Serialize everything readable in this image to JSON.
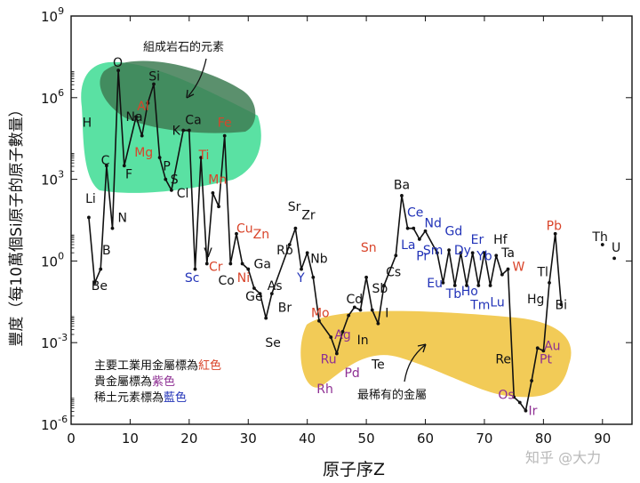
{
  "chart_data": {
    "type": "line",
    "title": "",
    "xlabel": "原子序Z",
    "ylabel": "豐度（每10萬個Si原子的原子數量）",
    "xlim": [
      0,
      95
    ],
    "ylim_log10": [
      -6,
      9
    ],
    "x_ticks": [
      0,
      10,
      20,
      30,
      40,
      50,
      60,
      70,
      80,
      90
    ],
    "y_ticks": [
      {
        "exp": -6,
        "label": "10",
        "sup": "-6"
      },
      {
        "exp": -3,
        "label": "10",
        "sup": "-3"
      },
      {
        "exp": 0,
        "label": "10",
        "sup": "0"
      },
      {
        "exp": 3,
        "label": "10",
        "sup": "3"
      },
      {
        "exp": 6,
        "label": "10",
        "sup": "6"
      },
      {
        "exp": 9,
        "label": "10",
        "sup": "9"
      }
    ],
    "series": [
      {
        "name": "abundance",
        "points": [
          {
            "z": 3,
            "log": 1.6
          },
          {
            "z": 4,
            "log": -0.8
          },
          {
            "z": 5,
            "log": -0.3
          },
          {
            "z": 6,
            "log": 3.5
          },
          {
            "z": 7,
            "log": 1.2
          },
          {
            "z": 8,
            "log": 7.0
          },
          {
            "z": 9,
            "log": 3.5
          },
          {
            "z": 11,
            "log": 5.3
          },
          {
            "z": 12,
            "log": 4.6
          },
          {
            "z": 13,
            "log": 5.8
          },
          {
            "z": 14,
            "log": 6.5
          },
          {
            "z": 15,
            "log": 3.8
          },
          {
            "z": 16,
            "log": 3.0
          },
          {
            "z": 17,
            "log": 2.6
          },
          {
            "z": 19,
            "log": 4.8
          },
          {
            "z": 20,
            "log": 4.8
          },
          {
            "z": 21,
            "log": -0.3
          },
          {
            "z": 22,
            "log": 3.8
          },
          {
            "z": 23,
            "log": -0.1
          },
          {
            "z": 24,
            "log": 2.5
          },
          {
            "z": 25,
            "log": 2.0
          },
          {
            "z": 26,
            "log": 4.6
          },
          {
            "z": 27,
            "log": -0.1
          },
          {
            "z": 28,
            "log": 1.0
          },
          {
            "z": 29,
            "log": -0.1
          },
          {
            "z": 30,
            "log": -0.3
          },
          {
            "z": 31,
            "log": -1.0
          },
          {
            "z": 32,
            "log": -1.2
          },
          {
            "z": 33,
            "log": -2.1
          },
          {
            "z": 34,
            "log": -1.2
          },
          {
            "z": 37,
            "log": 0.6
          },
          {
            "z": 38,
            "log": 1.2
          },
          {
            "z": 39,
            "log": -0.3
          },
          {
            "z": 40,
            "log": 0.3
          },
          {
            "z": 41,
            "log": -0.6
          },
          {
            "z": 42,
            "log": -2.2
          },
          {
            "z": 44,
            "log": -2.8
          },
          {
            "z": 45,
            "log": -3.4
          },
          {
            "z": 46,
            "log": -2.6
          },
          {
            "z": 47,
            "log": -2.0
          },
          {
            "z": 48,
            "log": -1.7
          },
          {
            "z": 49,
            "log": -1.8
          },
          {
            "z": 50,
            "log": -0.6
          },
          {
            "z": 51,
            "log": -1.8
          },
          {
            "z": 52,
            "log": -2.3
          },
          {
            "z": 53,
            "log": -0.9
          },
          {
            "z": 55,
            "log": 0.2
          },
          {
            "z": 56,
            "log": 2.4
          },
          {
            "z": 57,
            "log": 1.2
          },
          {
            "z": 58,
            "log": 1.2
          },
          {
            "z": 59,
            "log": 0.8
          },
          {
            "z": 60,
            "log": 1.1
          },
          {
            "z": 62,
            "log": 0.3
          },
          {
            "z": 63,
            "log": -0.8
          },
          {
            "z": 64,
            "log": 0.4
          },
          {
            "z": 65,
            "log": -0.9
          },
          {
            "z": 66,
            "log": 0.3
          },
          {
            "z": 67,
            "log": -0.9
          },
          {
            "z": 68,
            "log": 0.3
          },
          {
            "z": 69,
            "log": -0.9
          },
          {
            "z": 70,
            "log": 0.3
          },
          {
            "z": 71,
            "log": -0.9
          },
          {
            "z": 72,
            "log": 0.2
          },
          {
            "z": 73,
            "log": -0.5
          },
          {
            "z": 74,
            "log": -0.3
          },
          {
            "z": 75,
            "log": -5.0
          },
          {
            "z": 76,
            "log": -5.2
          },
          {
            "z": 77,
            "log": -5.5
          },
          {
            "z": 78,
            "log": -4.4
          },
          {
            "z": 79,
            "log": -3.2
          },
          {
            "z": 80,
            "log": -3.3
          },
          {
            "z": 81,
            "log": -0.8
          },
          {
            "z": 82,
            "log": 1.0
          },
          {
            "z": 83,
            "log": -1.6
          }
        ]
      },
      {
        "name": "isolated",
        "points": [
          {
            "z": 90,
            "log": 0.6
          },
          {
            "z": 92,
            "log": 0.1
          }
        ]
      }
    ],
    "labels": [
      {
        "sym": "H",
        "z": 2.7,
        "log": 5.1,
        "cat": "black"
      },
      {
        "sym": "Li",
        "z": 3.3,
        "log": 2.3,
        "cat": "black"
      },
      {
        "sym": "Be",
        "z": 4.8,
        "log": -0.9,
        "cat": "black"
      },
      {
        "sym": "B",
        "z": 6.0,
        "log": 0.4,
        "cat": "black"
      },
      {
        "sym": "C",
        "z": 5.8,
        "log": 3.7,
        "cat": "black"
      },
      {
        "sym": "N",
        "z": 8.7,
        "log": 1.6,
        "cat": "black"
      },
      {
        "sym": "O",
        "z": 7.9,
        "log": 7.3,
        "cat": "black"
      },
      {
        "sym": "F",
        "z": 9.8,
        "log": 3.2,
        "cat": "black"
      },
      {
        "sym": "Na",
        "z": 10.7,
        "log": 5.3,
        "cat": "black"
      },
      {
        "sym": "Mg",
        "z": 12.3,
        "log": 4.0,
        "cat": "industrial"
      },
      {
        "sym": "Al",
        "z": 12.2,
        "log": 5.7,
        "cat": "industrial"
      },
      {
        "sym": "Si",
        "z": 14.1,
        "log": 6.8,
        "cat": "black"
      },
      {
        "sym": "P",
        "z": 16.2,
        "log": 3.5,
        "cat": "black"
      },
      {
        "sym": "S",
        "z": 17.5,
        "log": 3.0,
        "cat": "black"
      },
      {
        "sym": "Cl",
        "z": 18.9,
        "log": 2.5,
        "cat": "black"
      },
      {
        "sym": "K",
        "z": 17.8,
        "log": 4.8,
        "cat": "black"
      },
      {
        "sym": "Ca",
        "z": 20.7,
        "log": 5.2,
        "cat": "black"
      },
      {
        "sym": "Sc",
        "z": 20.5,
        "log": -0.6,
        "cat": "rare"
      },
      {
        "sym": "Ti",
        "z": 22.5,
        "log": 3.9,
        "cat": "industrial"
      },
      {
        "sym": "V",
        "z": 23.2,
        "log": 0.3,
        "cat": "black"
      },
      {
        "sym": "Cr",
        "z": 24.5,
        "log": -0.2,
        "cat": "industrial"
      },
      {
        "sym": "Mn",
        "z": 24.8,
        "log": 3.0,
        "cat": "industrial"
      },
      {
        "sym": "Fe",
        "z": 26.0,
        "log": 5.1,
        "cat": "industrial"
      },
      {
        "sym": "Co",
        "z": 26.3,
        "log": -0.7,
        "cat": "black"
      },
      {
        "sym": "Ni",
        "z": 29.2,
        "log": -0.6,
        "cat": "industrial"
      },
      {
        "sym": "Cu",
        "z": 29.4,
        "log": 1.2,
        "cat": "industrial"
      },
      {
        "sym": "Zn",
        "z": 32.2,
        "log": 1.0,
        "cat": "industrial"
      },
      {
        "sym": "Ga",
        "z": 32.4,
        "log": -0.1,
        "cat": "black"
      },
      {
        "sym": "Ge",
        "z": 31.0,
        "log": -1.3,
        "cat": "black"
      },
      {
        "sym": "As",
        "z": 34.5,
        "log": -0.9,
        "cat": "black"
      },
      {
        "sym": "Se",
        "z": 34.2,
        "log": -3.0,
        "cat": "black"
      },
      {
        "sym": "Br",
        "z": 36.2,
        "log": -1.7,
        "cat": "black"
      },
      {
        "sym": "Rb",
        "z": 36.2,
        "log": 0.4,
        "cat": "black"
      },
      {
        "sym": "Sr",
        "z": 37.8,
        "log": 2.0,
        "cat": "black"
      },
      {
        "sym": "Y",
        "z": 38.9,
        "log": -0.6,
        "cat": "rare"
      },
      {
        "sym": "Zr",
        "z": 40.2,
        "log": 1.7,
        "cat": "black"
      },
      {
        "sym": "Nb",
        "z": 42.0,
        "log": 0.1,
        "cat": "black"
      },
      {
        "sym": "Mo",
        "z": 42.2,
        "log": -1.9,
        "cat": "industrial"
      },
      {
        "sym": "Cd",
        "z": 48.0,
        "log": -1.4,
        "cat": "black"
      },
      {
        "sym": "Ag",
        "z": 46.0,
        "log": -2.7,
        "cat": "precious"
      },
      {
        "sym": "In",
        "z": 49.4,
        "log": -2.9,
        "cat": "black"
      },
      {
        "sym": "Sn",
        "z": 50.4,
        "log": 0.5,
        "cat": "industrial"
      },
      {
        "sym": "Sb",
        "z": 52.3,
        "log": -1.0,
        "cat": "black"
      },
      {
        "sym": "I",
        "z": 53.5,
        "log": -1.9,
        "cat": "black"
      },
      {
        "sym": "Te",
        "z": 52.0,
        "log": -3.8,
        "cat": "black"
      },
      {
        "sym": "Ru",
        "z": 43.6,
        "log": -3.6,
        "cat": "precious"
      },
      {
        "sym": "Rh",
        "z": 43.0,
        "log": -4.7,
        "cat": "precious"
      },
      {
        "sym": "Pd",
        "z": 47.6,
        "log": -4.1,
        "cat": "precious"
      },
      {
        "sym": "Cs",
        "z": 54.6,
        "log": -0.4,
        "cat": "black"
      },
      {
        "sym": "Ba",
        "z": 56.0,
        "log": 2.8,
        "cat": "black"
      },
      {
        "sym": "La",
        "z": 57.1,
        "log": 0.6,
        "cat": "rare"
      },
      {
        "sym": "Ce",
        "z": 58.3,
        "log": 1.8,
        "cat": "rare"
      },
      {
        "sym": "Pr",
        "z": 59.5,
        "log": 0.2,
        "cat": "rare"
      },
      {
        "sym": "Nd",
        "z": 61.3,
        "log": 1.4,
        "cat": "rare"
      },
      {
        "sym": "Sm",
        "z": 61.3,
        "log": 0.4,
        "cat": "rare"
      },
      {
        "sym": "Eu",
        "z": 61.6,
        "log": -0.8,
        "cat": "rare"
      },
      {
        "sym": "Gd",
        "z": 64.8,
        "log": 1.1,
        "cat": "rare"
      },
      {
        "sym": "Tb",
        "z": 64.8,
        "log": -1.2,
        "cat": "rare"
      },
      {
        "sym": "Dy",
        "z": 66.3,
        "log": 0.4,
        "cat": "rare"
      },
      {
        "sym": "Ho",
        "z": 67.5,
        "log": -1.1,
        "cat": "rare"
      },
      {
        "sym": "Er",
        "z": 68.8,
        "log": 0.8,
        "cat": "rare"
      },
      {
        "sym": "Yb",
        "z": 70.0,
        "log": 0.2,
        "cat": "rare"
      },
      {
        "sym": "Tm",
        "z": 69.3,
        "log": -1.6,
        "cat": "rare"
      },
      {
        "sym": "Lu",
        "z": 72.2,
        "log": -1.5,
        "cat": "rare"
      },
      {
        "sym": "Hf",
        "z": 72.7,
        "log": 0.8,
        "cat": "black"
      },
      {
        "sym": "Ta",
        "z": 74.0,
        "log": 0.3,
        "cat": "black"
      },
      {
        "sym": "W",
        "z": 75.8,
        "log": -0.2,
        "cat": "industrial"
      },
      {
        "sym": "Re",
        "z": 73.2,
        "log": -3.6,
        "cat": "black"
      },
      {
        "sym": "Os",
        "z": 73.7,
        "log": -4.9,
        "cat": "precious"
      },
      {
        "sym": "Ir",
        "z": 78.2,
        "log": -5.5,
        "cat": "precious"
      },
      {
        "sym": "Pt",
        "z": 80.4,
        "log": -3.6,
        "cat": "precious"
      },
      {
        "sym": "Au",
        "z": 81.5,
        "log": -3.1,
        "cat": "precious"
      },
      {
        "sym": "Hg",
        "z": 78.7,
        "log": -1.4,
        "cat": "black"
      },
      {
        "sym": "Tl",
        "z": 79.9,
        "log": -0.4,
        "cat": "black"
      },
      {
        "sym": "Pb",
        "z": 81.8,
        "log": 1.3,
        "cat": "industrial"
      },
      {
        "sym": "Bi",
        "z": 83.0,
        "log": -1.6,
        "cat": "black"
      },
      {
        "sym": "Th",
        "z": 89.6,
        "log": 0.9,
        "cat": "black"
      },
      {
        "sym": "U",
        "z": 92.3,
        "log": 0.5,
        "cat": "black"
      }
    ],
    "annotations": {
      "rock": "組成岩石的元素",
      "rarest": "最稀有的金屬"
    },
    "legend": [
      {
        "prefix": "主要工業用金屬標為",
        "word": "紅色",
        "cat": "industrial"
      },
      {
        "prefix": "貴金屬標為",
        "word": "紫色",
        "cat": "precious"
      },
      {
        "prefix": "稀土元素標為",
        "word": "藍色",
        "cat": "rare"
      }
    ],
    "regions": [
      {
        "name": "rock-forming",
        "color": "#3ddc93"
      },
      {
        "name": "rock-forming-core",
        "color": "#3e7d54"
      },
      {
        "name": "rarest-metals",
        "color": "#f0c23a"
      }
    ]
  },
  "colors": {
    "industrial": "#d9442a",
    "precious": "#8e2f93",
    "rare": "#2233b8",
    "black": "#111111"
  },
  "watermark": "知乎 @大力"
}
